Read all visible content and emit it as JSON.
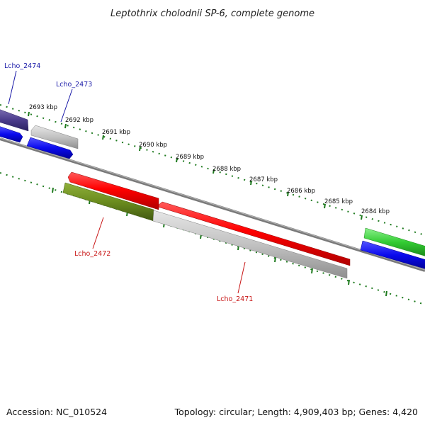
{
  "title": "Leptothrix cholodnii SP-6, complete genome",
  "footer": {
    "accession": "Accession: NC_010524",
    "summary": "Topology: circular; Length: 4,909,403 bp; Genes: 4,420"
  },
  "scale_labels": [
    "2693 kbp",
    "2692 kbp",
    "2691 kbp",
    "2690 kbp",
    "2689 kbp",
    "2688 kbp",
    "2687 kbp",
    "2686 kbp",
    "2685 kbp",
    "2684 kbp"
  ],
  "gene_labels": {
    "lcho_2474": "Lcho_2474",
    "lcho_2473": "Lcho_2473",
    "lcho_2472": "Lcho_2472",
    "lcho_2471": "Lcho_2471"
  },
  "colors": {
    "blue_label": "#1a1aa8",
    "red_label": "#c81414",
    "tick_green": "#1e7a1e",
    "backbone": "#7a7a7a",
    "gene_red": "#ff0000",
    "gene_gray": "#c2c2c2",
    "gene_olive": "#6b8c1e",
    "gene_blue": "#0a0aee",
    "gene_purple": "#4b3c8c",
    "gene_green": "#33cc33"
  }
}
